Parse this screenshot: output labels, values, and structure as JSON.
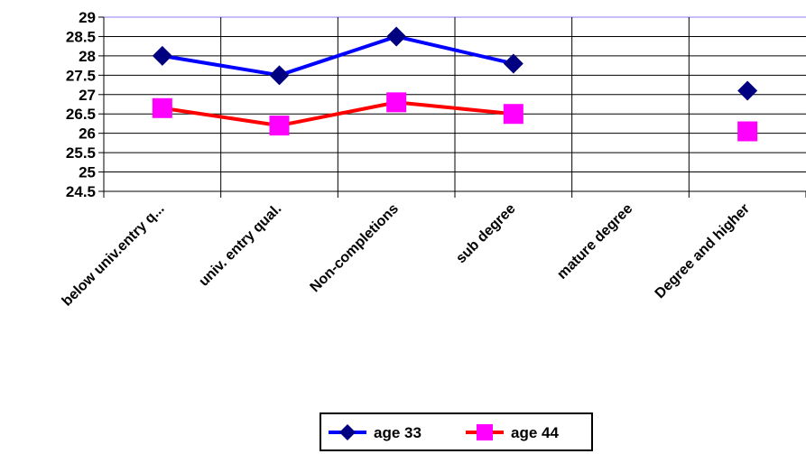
{
  "chart_data": {
    "type": "line",
    "title": "",
    "xlabel": "",
    "ylabel": "",
    "categories": [
      "below univ.entry q...",
      "univ. entry qual.",
      "Non-completions",
      "sub degree",
      "mature degree",
      "Degree and higher"
    ],
    "ylim": [
      24.5,
      29
    ],
    "yticks": [
      "24.5",
      "25",
      "25.5",
      "26",
      "26.5",
      "27",
      "27.5",
      "28",
      "28.5",
      "29"
    ],
    "grid": "horizontal and vertical",
    "legend_position": "bottom-center",
    "series": [
      {
        "name": "age 33",
        "color": "#0000ff",
        "marker_color": "#000080",
        "marker": "diamond",
        "values": [
          28.0,
          27.5,
          28.5,
          27.8,
          null,
          27.1
        ]
      },
      {
        "name": "age 44",
        "color": "#ff0000",
        "marker_color": "#ff00ff",
        "marker": "square",
        "values": [
          26.65,
          26.2,
          26.8,
          26.5,
          null,
          26.05
        ]
      }
    ]
  }
}
